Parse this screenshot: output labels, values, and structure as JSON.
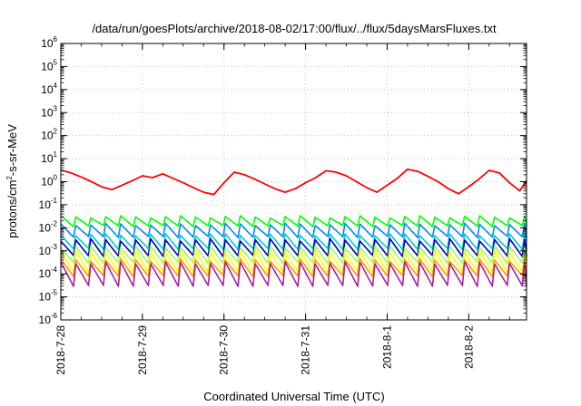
{
  "chart_data": {
    "type": "line",
    "title": "/data/run/goesPlots/archive/2018-08-02/17:00/flux/../flux/5daysMarsFluxes.txt",
    "xlabel": "Coordinated Universal Time (UTC)",
    "ylabel_base": "protons/cm",
    "ylabel_sup": "2",
    "ylabel_rest": "-s-sr-MeV",
    "y_scale": "log",
    "ylim": [
      1e-06,
      1000000.0
    ],
    "y_ticks": [
      {
        "base": "10",
        "exp": "-6"
      },
      {
        "base": "10",
        "exp": "-5"
      },
      {
        "base": "10",
        "exp": "-4"
      },
      {
        "base": "10",
        "exp": "-3"
      },
      {
        "base": "10",
        "exp": "-2"
      },
      {
        "base": "10",
        "exp": "-1"
      },
      {
        "base": "10",
        "exp": "0"
      },
      {
        "base": "10",
        "exp": "1"
      },
      {
        "base": "10",
        "exp": "2"
      },
      {
        "base": "10",
        "exp": "3"
      },
      {
        "base": "10",
        "exp": "4"
      },
      {
        "base": "10",
        "exp": "5"
      },
      {
        "base": "10",
        "exp": "6"
      }
    ],
    "x_ticks": [
      "2018-7-28",
      "2018-7-29",
      "2018-7-30",
      "2018-7-31",
      "2018-8-1",
      "2018-8-2"
    ],
    "xlim": [
      "2018-07-28T00:00",
      "2018-08-02T17:00"
    ],
    "grid": true,
    "legend": "none",
    "series": [
      {
        "color": "#ff0000",
        "x": [
          "2018-07-28T00:00",
          "2018-07-28T03:00",
          "2018-07-28T06:00",
          "2018-07-28T09:00",
          "2018-07-28T12:00",
          "2018-07-28T15:00",
          "2018-07-28T18:00",
          "2018-07-28T21:00",
          "2018-07-29T00:00",
          "2018-07-29T03:00",
          "2018-07-29T06:00",
          "2018-07-29T09:00",
          "2018-07-29T12:00",
          "2018-07-29T15:00",
          "2018-07-29T18:00",
          "2018-07-29T21:00",
          "2018-07-30T00:00",
          "2018-07-30T03:00",
          "2018-07-30T06:00",
          "2018-07-30T09:00",
          "2018-07-30T12:00",
          "2018-07-30T15:00",
          "2018-07-30T18:00",
          "2018-07-30T21:00",
          "2018-07-31T00:00",
          "2018-07-31T03:00",
          "2018-07-31T06:00",
          "2018-07-31T09:00",
          "2018-07-31T12:00",
          "2018-07-31T15:00",
          "2018-07-31T18:00",
          "2018-07-31T21:00",
          "2018-08-01T00:00",
          "2018-08-01T03:00",
          "2018-08-01T06:00",
          "2018-08-01T09:00",
          "2018-08-01T12:00",
          "2018-08-01T15:00",
          "2018-08-01T18:00",
          "2018-08-01T21:00",
          "2018-08-02T00:00",
          "2018-08-02T03:00",
          "2018-08-02T06:00",
          "2018-08-02T09:00",
          "2018-08-02T12:00",
          "2018-08-02T15:00",
          "2018-08-02T17:00"
        ],
        "values": [
          3.2,
          2.4,
          1.6,
          1.0,
          0.6,
          0.45,
          0.7,
          1.1,
          1.8,
          1.5,
          2.2,
          1.4,
          0.9,
          0.55,
          0.35,
          0.28,
          0.9,
          2.6,
          2.0,
          1.3,
          0.8,
          0.5,
          0.35,
          0.5,
          0.9,
          1.5,
          3.0,
          2.6,
          1.8,
          1.0,
          0.55,
          0.35,
          0.7,
          1.4,
          3.5,
          2.8,
          1.7,
          1.0,
          0.5,
          0.3,
          0.6,
          1.3,
          3.1,
          2.4,
          0.9,
          0.4,
          1.1
        ]
      }
    ],
    "sawtooth_series": [
      {
        "color": "#00ff00",
        "high": 0.03,
        "low": 0.012
      },
      {
        "color": "#0088ff",
        "high": 0.014,
        "low": 0.004
      },
      {
        "color": "#00cccc",
        "high": 0.005,
        "low": 0.0012
      },
      {
        "color": "#0000cc",
        "high": 0.003,
        "low": 0.0006
      },
      {
        "color": "#99ff55",
        "high": 0.0015,
        "low": 0.0003
      },
      {
        "color": "#ffff00",
        "high": 0.0009,
        "low": 0.00012
      },
      {
        "color": "#ff9900",
        "high": 0.0004,
        "low": 8e-05
      },
      {
        "color": "#aa2299",
        "high": 0.0003,
        "low": 3e-05
      }
    ]
  }
}
